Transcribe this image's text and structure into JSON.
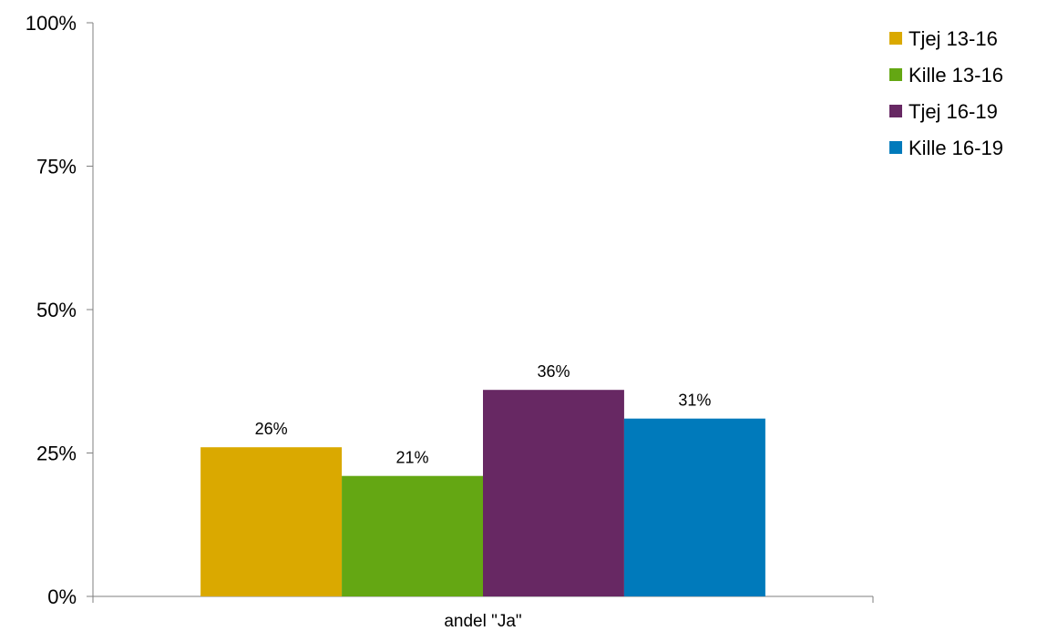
{
  "chart_data": {
    "type": "bar",
    "categories": [
      "andel \"Ja\""
    ],
    "series": [
      {
        "name": "Tjej 13-16",
        "values": [
          26
        ],
        "label": "26%",
        "color": "#DAA900"
      },
      {
        "name": "Kille 13-16",
        "values": [
          21
        ],
        "label": "21%",
        "color": "#64A713"
      },
      {
        "name": "Tjej 16-19",
        "values": [
          36
        ],
        "label": "36%",
        "color": "#672863"
      },
      {
        "name": "Kille 16-19",
        "values": [
          31
        ],
        "label": "31%",
        "color": "#007ABB"
      }
    ],
    "yticks": [
      {
        "value": 0,
        "label": "0%"
      },
      {
        "value": 25,
        "label": "25%"
      },
      {
        "value": 50,
        "label": "50%"
      },
      {
        "value": 75,
        "label": "75%"
      },
      {
        "value": 100,
        "label": "100%"
      }
    ],
    "ylim": [
      0,
      100
    ],
    "grid": false,
    "legend_position": "top-right"
  }
}
